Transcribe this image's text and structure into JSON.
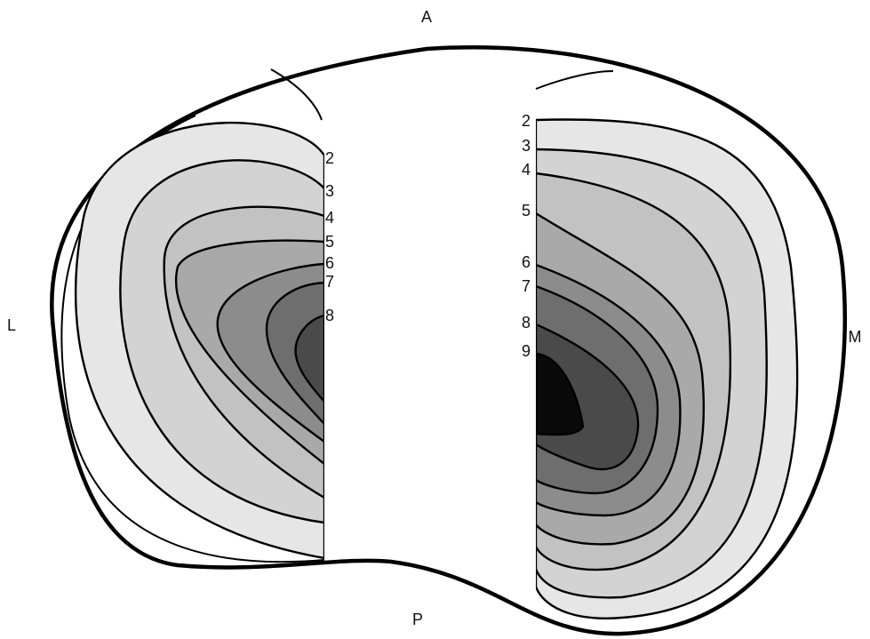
{
  "orientation": {
    "anterior": "A",
    "posterior": "P",
    "lateral": "L",
    "medial": "M"
  },
  "lateral_contours": [
    "2",
    "3",
    "4",
    "5",
    "6",
    "7",
    "8"
  ],
  "medial_contours": [
    "2",
    "3",
    "4",
    "5",
    "6",
    "7",
    "8",
    "9"
  ]
}
